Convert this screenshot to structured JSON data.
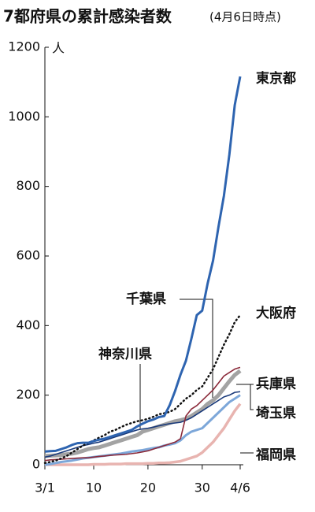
{
  "chart_data": {
    "type": "line",
    "title": "7都府県の累計感染者数",
    "subtitle": "(4月6日時点)",
    "y_unit": "人",
    "x": [
      1,
      2,
      3,
      4,
      5,
      6,
      7,
      8,
      9,
      10,
      11,
      12,
      13,
      14,
      15,
      16,
      17,
      18,
      19,
      20,
      21,
      22,
      23,
      24,
      25,
      26,
      27,
      28,
      29,
      30,
      31,
      32,
      33,
      34,
      35,
      36,
      37
    ],
    "xlim": [
      1,
      37
    ],
    "xticks": [
      {
        "value": 1,
        "label": "3/1"
      },
      10,
      20,
      30,
      {
        "value": 37,
        "label": "4/6"
      }
    ],
    "ylim": [
      0,
      1200
    ],
    "yticks": [
      0,
      200,
      400,
      600,
      800,
      1000,
      1200
    ],
    "series": [
      {
        "name": "東京都",
        "color": "#2e64b0",
        "width": 3,
        "values": [
          38,
          39,
          40,
          45,
          50,
          57,
          62,
          63,
          63,
          68,
          72,
          75,
          80,
          85,
          90,
          95,
          100,
          110,
          118,
          125,
          130,
          137,
          140,
          171,
          212,
          259,
          299,
          362,
          430,
          443,
          521,
          587,
          684,
          773,
          891,
          1034,
          1116
        ]
      },
      {
        "name": "大阪府",
        "color": "#111111",
        "width": 2.5,
        "dash": "dotted",
        "values": [
          5,
          8,
          12,
          18,
          25,
          35,
          45,
          55,
          62,
          70,
          78,
          85,
          95,
          100,
          108,
          115,
          120,
          125,
          128,
          132,
          138,
          145,
          148,
          152,
          160,
          175,
          190,
          200,
          215,
          225,
          250,
          275,
          310,
          345,
          375,
          410,
          430
        ]
      },
      {
        "name": "千葉県",
        "color": "#8b2a3a",
        "width": 1.6,
        "values": [
          12,
          14,
          15,
          16,
          17,
          18,
          19,
          20,
          20,
          22,
          24,
          25,
          27,
          28,
          29,
          30,
          32,
          34,
          37,
          40,
          45,
          50,
          55,
          60,
          65,
          75,
          140,
          160,
          170,
          185,
          200,
          215,
          235,
          255,
          265,
          275,
          280
        ]
      },
      {
        "name": "神奈川県",
        "color": "#1a3a7a",
        "width": 1.6,
        "values": [
          22,
          25,
          30,
          35,
          40,
          45,
          50,
          55,
          58,
          62,
          65,
          70,
          75,
          80,
          85,
          90,
          95,
          100,
          103,
          105,
          108,
          112,
          115,
          118,
          120,
          122,
          128,
          135,
          145,
          155,
          165,
          175,
          185,
          195,
          200,
          208,
          210
        ]
      },
      {
        "name": "兵庫県",
        "color": "#a3a3a3",
        "width": 5,
        "values": [
          25,
          26,
          27,
          28,
          30,
          32,
          35,
          40,
          45,
          48,
          50,
          55,
          60,
          65,
          70,
          75,
          80,
          85,
          95,
          100,
          105,
          110,
          115,
          120,
          125,
          128,
          132,
          140,
          150,
          160,
          175,
          185,
          200,
          220,
          240,
          258,
          270
        ]
      },
      {
        "name": "埼玉県",
        "color": "#7da7d9",
        "width": 3,
        "values": [
          0,
          2,
          5,
          8,
          10,
          12,
          15,
          18,
          20,
          22,
          24,
          26,
          28,
          30,
          32,
          35,
          38,
          40,
          42,
          45,
          48,
          50,
          55,
          58,
          62,
          70,
          85,
          95,
          100,
          105,
          120,
          135,
          150,
          165,
          180,
          190,
          200
        ]
      },
      {
        "name": "福岡県",
        "color": "#e8b4b0",
        "width": 3.5,
        "values": [
          0,
          0,
          0,
          0,
          0,
          0,
          0,
          0,
          0,
          1,
          1,
          1,
          2,
          2,
          2,
          3,
          3,
          3,
          3,
          4,
          4,
          5,
          5,
          6,
          8,
          10,
          15,
          20,
          25,
          35,
          50,
          65,
          85,
          105,
          130,
          155,
          175
        ]
      }
    ]
  }
}
